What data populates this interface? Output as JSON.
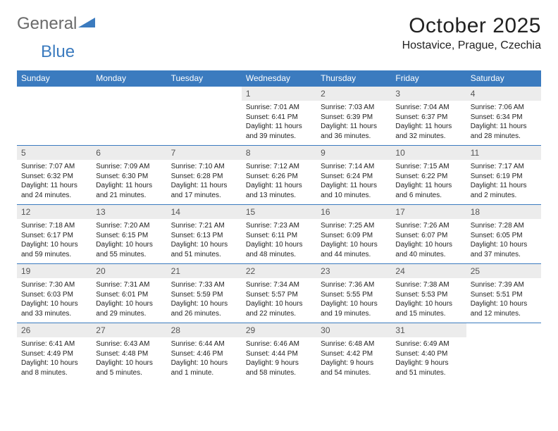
{
  "logo": {
    "word1": "General",
    "word2": "Blue"
  },
  "title": "October 2025",
  "location": "Hostavice, Prague, Czechia",
  "colors": {
    "header_bg": "#3b7bbf",
    "header_text": "#ffffff",
    "date_bg": "#ececec",
    "date_text": "#555555",
    "body_text": "#222222",
    "row_border": "#3b7bbf",
    "page_bg": "#ffffff",
    "logo_gray": "#6a6a6a",
    "logo_blue": "#3b7bbf"
  },
  "day_names": [
    "Sunday",
    "Monday",
    "Tuesday",
    "Wednesday",
    "Thursday",
    "Friday",
    "Saturday"
  ],
  "weeks": [
    [
      null,
      null,
      null,
      {
        "date": "1",
        "sunrise": "7:01 AM",
        "sunset": "6:41 PM",
        "daylight": "11 hours and 39 minutes."
      },
      {
        "date": "2",
        "sunrise": "7:03 AM",
        "sunset": "6:39 PM",
        "daylight": "11 hours and 36 minutes."
      },
      {
        "date": "3",
        "sunrise": "7:04 AM",
        "sunset": "6:37 PM",
        "daylight": "11 hours and 32 minutes."
      },
      {
        "date": "4",
        "sunrise": "7:06 AM",
        "sunset": "6:34 PM",
        "daylight": "11 hours and 28 minutes."
      }
    ],
    [
      {
        "date": "5",
        "sunrise": "7:07 AM",
        "sunset": "6:32 PM",
        "daylight": "11 hours and 24 minutes."
      },
      {
        "date": "6",
        "sunrise": "7:09 AM",
        "sunset": "6:30 PM",
        "daylight": "11 hours and 21 minutes."
      },
      {
        "date": "7",
        "sunrise": "7:10 AM",
        "sunset": "6:28 PM",
        "daylight": "11 hours and 17 minutes."
      },
      {
        "date": "8",
        "sunrise": "7:12 AM",
        "sunset": "6:26 PM",
        "daylight": "11 hours and 13 minutes."
      },
      {
        "date": "9",
        "sunrise": "7:14 AM",
        "sunset": "6:24 PM",
        "daylight": "11 hours and 10 minutes."
      },
      {
        "date": "10",
        "sunrise": "7:15 AM",
        "sunset": "6:22 PM",
        "daylight": "11 hours and 6 minutes."
      },
      {
        "date": "11",
        "sunrise": "7:17 AM",
        "sunset": "6:19 PM",
        "daylight": "11 hours and 2 minutes."
      }
    ],
    [
      {
        "date": "12",
        "sunrise": "7:18 AM",
        "sunset": "6:17 PM",
        "daylight": "10 hours and 59 minutes."
      },
      {
        "date": "13",
        "sunrise": "7:20 AM",
        "sunset": "6:15 PM",
        "daylight": "10 hours and 55 minutes."
      },
      {
        "date": "14",
        "sunrise": "7:21 AM",
        "sunset": "6:13 PM",
        "daylight": "10 hours and 51 minutes."
      },
      {
        "date": "15",
        "sunrise": "7:23 AM",
        "sunset": "6:11 PM",
        "daylight": "10 hours and 48 minutes."
      },
      {
        "date": "16",
        "sunrise": "7:25 AM",
        "sunset": "6:09 PM",
        "daylight": "10 hours and 44 minutes."
      },
      {
        "date": "17",
        "sunrise": "7:26 AM",
        "sunset": "6:07 PM",
        "daylight": "10 hours and 40 minutes."
      },
      {
        "date": "18",
        "sunrise": "7:28 AM",
        "sunset": "6:05 PM",
        "daylight": "10 hours and 37 minutes."
      }
    ],
    [
      {
        "date": "19",
        "sunrise": "7:30 AM",
        "sunset": "6:03 PM",
        "daylight": "10 hours and 33 minutes."
      },
      {
        "date": "20",
        "sunrise": "7:31 AM",
        "sunset": "6:01 PM",
        "daylight": "10 hours and 29 minutes."
      },
      {
        "date": "21",
        "sunrise": "7:33 AM",
        "sunset": "5:59 PM",
        "daylight": "10 hours and 26 minutes."
      },
      {
        "date": "22",
        "sunrise": "7:34 AM",
        "sunset": "5:57 PM",
        "daylight": "10 hours and 22 minutes."
      },
      {
        "date": "23",
        "sunrise": "7:36 AM",
        "sunset": "5:55 PM",
        "daylight": "10 hours and 19 minutes."
      },
      {
        "date": "24",
        "sunrise": "7:38 AM",
        "sunset": "5:53 PM",
        "daylight": "10 hours and 15 minutes."
      },
      {
        "date": "25",
        "sunrise": "7:39 AM",
        "sunset": "5:51 PM",
        "daylight": "10 hours and 12 minutes."
      }
    ],
    [
      {
        "date": "26",
        "sunrise": "6:41 AM",
        "sunset": "4:49 PM",
        "daylight": "10 hours and 8 minutes."
      },
      {
        "date": "27",
        "sunrise": "6:43 AM",
        "sunset": "4:48 PM",
        "daylight": "10 hours and 5 minutes."
      },
      {
        "date": "28",
        "sunrise": "6:44 AM",
        "sunset": "4:46 PM",
        "daylight": "10 hours and 1 minute."
      },
      {
        "date": "29",
        "sunrise": "6:46 AM",
        "sunset": "4:44 PM",
        "daylight": "9 hours and 58 minutes."
      },
      {
        "date": "30",
        "sunrise": "6:48 AM",
        "sunset": "4:42 PM",
        "daylight": "9 hours and 54 minutes."
      },
      {
        "date": "31",
        "sunrise": "6:49 AM",
        "sunset": "4:40 PM",
        "daylight": "9 hours and 51 minutes."
      },
      null
    ]
  ],
  "labels": {
    "sunrise": "Sunrise:",
    "sunset": "Sunset:",
    "daylight": "Daylight:"
  }
}
